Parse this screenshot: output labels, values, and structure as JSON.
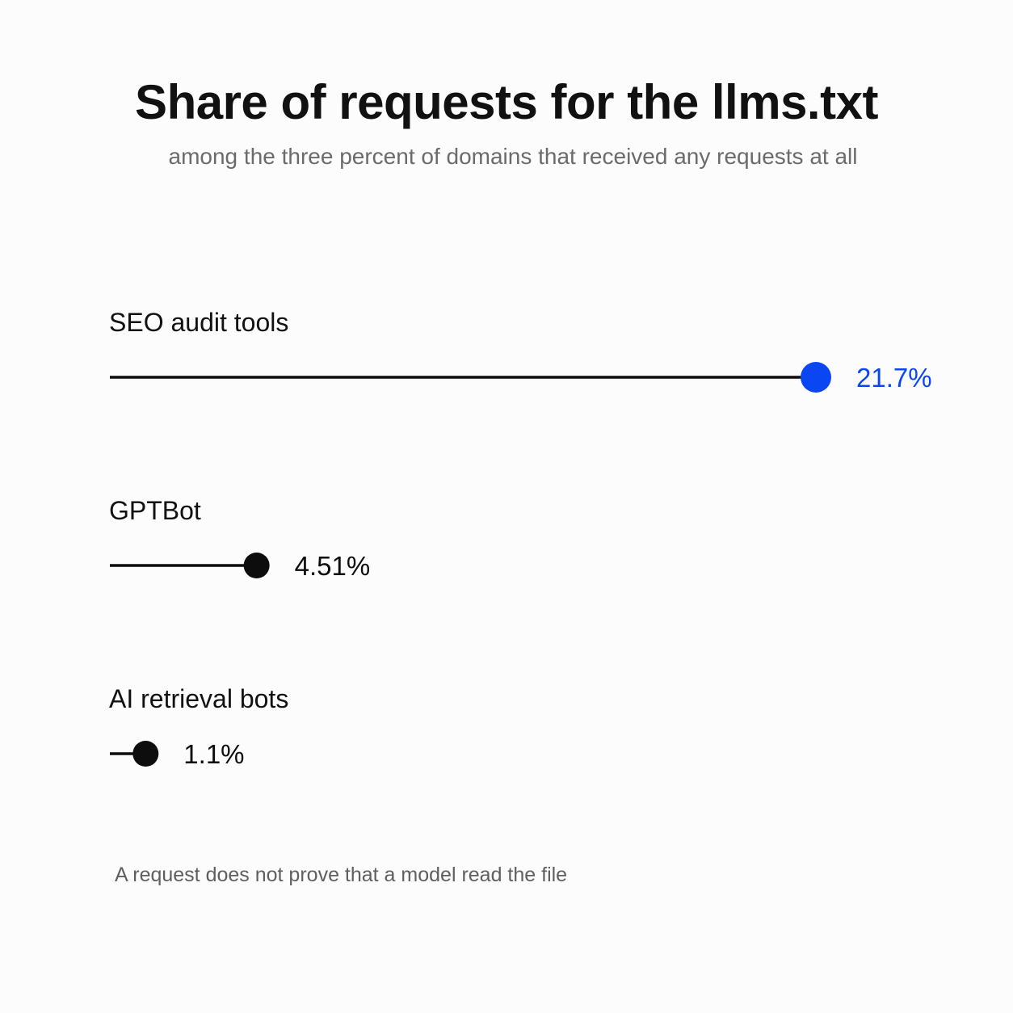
{
  "title": "Share of requests for the llms.txt",
  "subtitle": "among the three percent of domains that received any requests at all",
  "footnote": "A request does not prove that a model read the file",
  "colors": {
    "highlight": "#0a47f2",
    "default": "#0d0d0d",
    "background": "#fcfcfc"
  },
  "chart_data": {
    "type": "bar",
    "style": "lollipop",
    "title": "Share of requests for the llms.txt",
    "subtitle": "among the three percent of domains that received any requests at all",
    "unit": "%",
    "categories": [
      "SEO audit tools",
      "GPTBot",
      "AI retrieval bots"
    ],
    "values": [
      21.7,
      4.51,
      1.1
    ],
    "value_labels": [
      "21.7%",
      "4.51%",
      "1.1%"
    ],
    "highlighted": [
      "SEO audit tools"
    ],
    "xlim": [
      0,
      21.7
    ],
    "grid": false,
    "legend": "none"
  }
}
